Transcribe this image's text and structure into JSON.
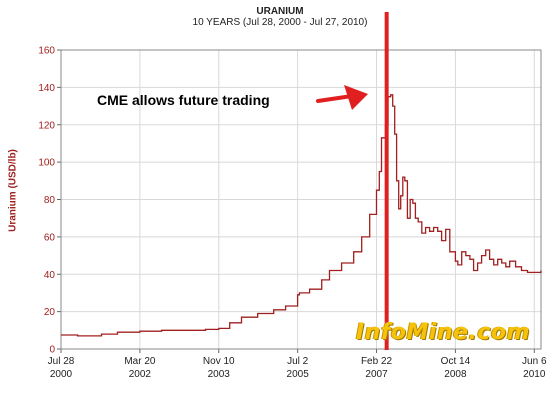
{
  "header": {
    "title": "URANIUM",
    "subtitle": "10 YEARS (Jul 28, 2000 - Jul 27, 2010)"
  },
  "annotation": {
    "text": "CME allows future trading",
    "event_x": "2007-05-10"
  },
  "watermark": "InfoMine.com",
  "colors": {
    "series": "#a02020",
    "vline": "#e02020",
    "arrow": "#e02020",
    "watermark": "#f7c20a"
  },
  "chart_data": {
    "type": "line",
    "title": "URANIUM",
    "subtitle": "10 YEARS (Jul 28, 2000 - Jul 27, 2010)",
    "xlabel": "",
    "ylabel": "Uranium (USD/lb)",
    "ylim": [
      0,
      160
    ],
    "yticks": [
      0,
      20,
      40,
      60,
      80,
      100,
      120,
      140,
      160
    ],
    "xlim": [
      "2000-07-28",
      "2010-07-27"
    ],
    "xticks": [
      {
        "date": "2000-07-28",
        "label1": "Jul 28",
        "label2": "2000"
      },
      {
        "date": "2002-03-20",
        "label1": "Mar 20",
        "label2": "2002"
      },
      {
        "date": "2003-11-10",
        "label1": "Nov 10",
        "label2": "2003"
      },
      {
        "date": "2005-07-02",
        "label1": "Jul 2",
        "label2": "2005"
      },
      {
        "date": "2007-02-22",
        "label1": "Feb 22",
        "label2": "2007"
      },
      {
        "date": "2008-10-14",
        "label1": "Oct 14",
        "label2": "2008"
      },
      {
        "date": "2010-06-06",
        "label1": "Jun 6",
        "label2": "2010"
      }
    ],
    "grid": true,
    "series": [
      {
        "x": [
          "2000-07-28",
          "2000-12-01",
          "2001-03-01",
          "2001-06-01",
          "2001-10-01",
          "2002-03-20",
          "2002-09-01",
          "2003-03-01",
          "2003-08-01",
          "2003-11-10",
          "2004-02-01",
          "2004-05-01",
          "2004-09-01",
          "2005-01-01",
          "2005-04-01",
          "2005-07-02",
          "2005-07-15",
          "2005-10-01",
          "2006-01-01",
          "2006-03-01",
          "2006-06-01",
          "2006-09-01",
          "2006-11-01",
          "2007-01-01",
          "2007-02-22",
          "2007-03-15",
          "2007-04-01",
          "2007-04-15",
          "2007-05-01",
          "2007-05-20",
          "2007-06-10",
          "2007-06-25",
          "2007-07-10",
          "2007-07-25",
          "2007-08-10",
          "2007-08-25",
          "2007-09-10",
          "2007-09-25",
          "2007-10-15",
          "2007-11-05",
          "2007-11-25",
          "2007-12-15",
          "2008-01-05",
          "2008-02-01",
          "2008-03-01",
          "2008-04-01",
          "2008-05-01",
          "2008-06-01",
          "2008-07-01",
          "2008-08-01",
          "2008-09-01",
          "2008-10-14",
          "2008-11-01",
          "2008-12-01",
          "2009-01-01",
          "2009-02-01",
          "2009-03-01",
          "2009-04-01",
          "2009-05-01",
          "2009-06-01",
          "2009-07-01",
          "2009-08-01",
          "2009-09-01",
          "2009-10-01",
          "2009-11-01",
          "2009-12-01",
          "2010-01-15",
          "2010-03-01",
          "2010-04-15",
          "2010-06-06",
          "2010-07-27"
        ],
        "y": [
          7.5,
          7,
          7,
          8,
          9,
          9.5,
          10,
          10,
          10.5,
          11,
          14,
          17,
          19,
          21,
          23,
          29,
          30,
          32,
          37,
          42,
          46,
          52,
          60,
          72,
          85,
          95,
          113,
          113,
          120,
          135,
          136,
          130,
          115,
          90,
          75,
          82,
          92,
          90,
          70,
          80,
          78,
          70,
          68,
          62,
          65,
          63,
          65,
          63,
          58,
          64,
          52,
          47,
          45,
          52,
          50,
          48,
          42,
          46,
          50,
          53,
          48,
          45,
          48,
          46,
          44,
          47,
          44,
          42,
          41,
          41,
          42
        ]
      }
    ]
  }
}
